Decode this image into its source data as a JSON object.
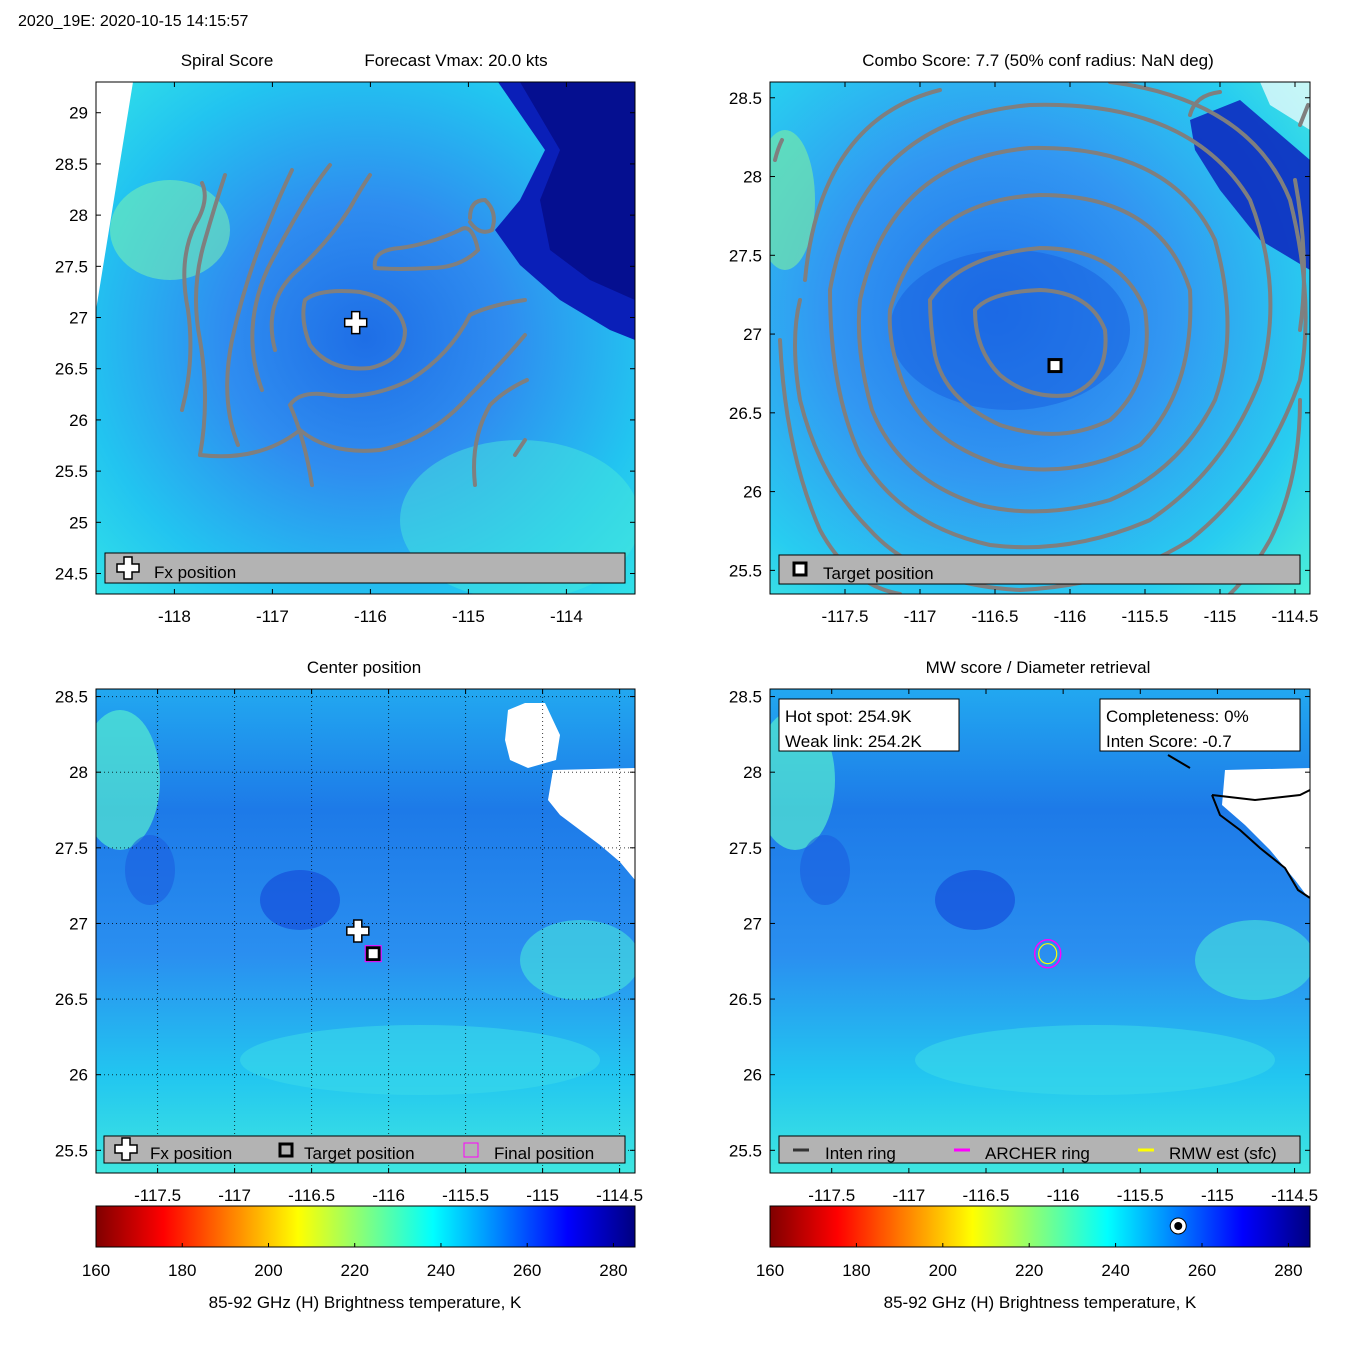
{
  "figure_title": "2020_19E: 2020-10-15 14:15:57",
  "colors": {
    "contour": "#7f7f7f",
    "land": "#ffffff",
    "legend_bg": "#b3b3b3",
    "archer_ring": "#ff00ff",
    "rmw_ring": "#ffff00",
    "inten_ring": "#333333"
  },
  "colormap": [
    "#800000",
    "#ff0000",
    "#ff8000",
    "#ffff00",
    "#80ff80",
    "#00ffff",
    "#0080ff",
    "#0000ff",
    "#000080"
  ],
  "chart_data": [
    {
      "panel": "spiral",
      "type": "heatmap",
      "title_left": "Spiral Score",
      "title_right": "Forecast Vmax: 20.0 kts",
      "xlim": [
        -118.8,
        -113.3
      ],
      "ylim": [
        24.3,
        29.3
      ],
      "xticks": [
        -118,
        -117,
        -116,
        -115,
        -114
      ],
      "yticks": [
        24.5,
        25,
        25.5,
        26,
        26.5,
        27,
        27.5,
        28,
        28.5,
        29
      ],
      "markers": [
        {
          "kind": "plus",
          "lon": -116.15,
          "lat": 26.95
        }
      ],
      "legend": [
        {
          "symbol": "plus",
          "label": "Fx position"
        }
      ]
    },
    {
      "panel": "combo",
      "type": "heatmap",
      "title": "Combo Score: 7.7  (50% conf radius: NaN deg)",
      "xlim": [
        -118.0,
        -114.4
      ],
      "ylim": [
        25.35,
        28.6
      ],
      "xticks": [
        -117.5,
        -117,
        -116.5,
        -116,
        -115.5,
        -115,
        -114.5
      ],
      "yticks": [
        25.5,
        26,
        26.5,
        27,
        27.5,
        28,
        28.5
      ],
      "markers": [
        {
          "kind": "square",
          "lon": -116.1,
          "lat": 26.8
        }
      ],
      "legend": [
        {
          "symbol": "square",
          "label": "Target position"
        }
      ]
    },
    {
      "panel": "center",
      "type": "heatmap",
      "title": "Center position",
      "xlim": [
        -117.9,
        -114.4
      ],
      "ylim": [
        25.35,
        28.55
      ],
      "xticks": [
        -117.5,
        -117,
        -116.5,
        -116,
        -115.5,
        -115,
        -114.5
      ],
      "yticks": [
        25.5,
        26,
        26.5,
        27,
        27.5,
        28,
        28.5
      ],
      "markers": [
        {
          "kind": "plus",
          "lon": -116.2,
          "lat": 26.95
        },
        {
          "kind": "square",
          "lon": -116.1,
          "lat": 26.8
        },
        {
          "kind": "final",
          "lon": -116.1,
          "lat": 26.8
        }
      ],
      "legend": [
        {
          "symbol": "plus",
          "label": "Fx position"
        },
        {
          "symbol": "square",
          "label": "Target position"
        },
        {
          "symbol": "final",
          "label": "Final position"
        }
      ]
    },
    {
      "panel": "mw",
      "type": "heatmap",
      "title": "MW score / Diameter retrieval",
      "xlim": [
        -117.9,
        -114.4
      ],
      "ylim": [
        25.35,
        28.55
      ],
      "xticks": [
        -117.5,
        -117,
        -116.5,
        -116,
        -115.5,
        -115,
        -114.5
      ],
      "yticks": [
        25.5,
        26,
        26.5,
        27,
        27.5,
        28,
        28.5
      ],
      "markers": [
        {
          "kind": "rings",
          "lon": -116.1,
          "lat": 26.8
        }
      ],
      "info_left": [
        "Hot spot: 254.9K",
        "Weak link: 254.2K"
      ],
      "info_right": [
        "Completeness: 0%",
        "Inten Score: -0.7"
      ],
      "legend": [
        {
          "symbol": "line-inten",
          "label": "Inten ring"
        },
        {
          "symbol": "line-archer",
          "label": "ARCHER ring"
        },
        {
          "symbol": "line-rmw",
          "label": "RMW est (sfc)"
        }
      ]
    }
  ],
  "colorbars": [
    {
      "ticks": [
        160,
        180,
        200,
        220,
        240,
        260,
        280
      ],
      "range": [
        160,
        285
      ],
      "label": "85-92 GHz (H) Brightness temperature, K",
      "marker_value": null
    },
    {
      "ticks": [
        160,
        180,
        200,
        220,
        240,
        260,
        280
      ],
      "range": [
        160,
        285
      ],
      "label": "85-92 GHz (H) Brightness temperature, K",
      "marker_value": 254.5
    }
  ]
}
